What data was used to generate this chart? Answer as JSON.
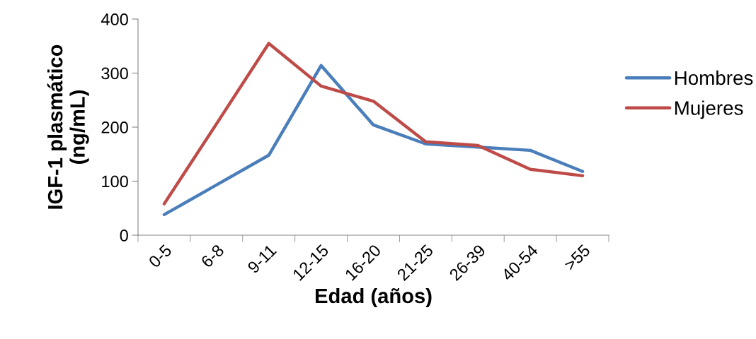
{
  "chart_data": {
    "type": "line",
    "xlabel": "Edad (años)",
    "ylabel": "IGF-1 plasmático\n(ng/mL)",
    "categories": [
      "0-5",
      "6-8",
      "9-11",
      "12-15",
      "16-20",
      "21-25",
      "26-39",
      "40-54",
      ">55"
    ],
    "series": [
      {
        "name": "Hombres",
        "color": "#4a7ebb",
        "values": [
          38,
          93,
          148,
          314,
          204,
          169,
          163,
          157,
          118
        ]
      },
      {
        "name": "Mujeres",
        "color": "#be4b48",
        "values": [
          58,
          206,
          355,
          276,
          248,
          173,
          166,
          122,
          110
        ]
      }
    ],
    "ylim": [
      0,
      400
    ],
    "yticks": [
      0,
      100,
      200,
      300,
      400
    ],
    "grid": false,
    "legend": "right",
    "marker": "none",
    "line_style": "solid"
  }
}
